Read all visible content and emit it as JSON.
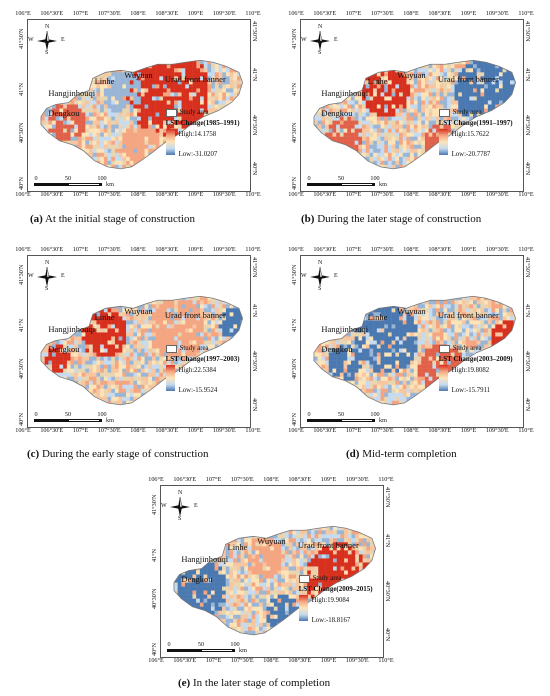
{
  "panels": [
    {
      "id": "a",
      "caption_letter": "(a)",
      "caption_text": " At the initial stage of construction",
      "legend_title": "LST Change(1985–1991)",
      "high": "High:14.1758",
      "low": "Low:-31.0207"
    },
    {
      "id": "b",
      "caption_letter": "(b)",
      "caption_text": " During the later stage of construction",
      "legend_title": "LST Change(1991–1997)",
      "high": "High:15.7622",
      "low": "Low:-20.7787"
    },
    {
      "id": "c",
      "caption_letter": "(c)",
      "caption_text": " During the early stage of construction",
      "legend_title": "LST Change(1997–2003)",
      "high": "High:22.5384",
      "low": "Low:-15.9524"
    },
    {
      "id": "d",
      "caption_letter": "(d)",
      "caption_text": " Mid-term completion",
      "legend_title": "LST Change(2003–2009)",
      "high": "High:19.8082",
      "low": "Low:-15.7911"
    },
    {
      "id": "e",
      "caption_letter": "(e)",
      "caption_text": " In the later stage of completion",
      "legend_title": "LST Change(2009–2015)",
      "high": "High:19.9084",
      "low": "Low:-18.8167"
    }
  ],
  "common": {
    "lon_ticks": [
      "106°E",
      "106°30'E",
      "107°E",
      "107°30'E",
      "108°E",
      "108°30'E",
      "109°E",
      "109°30'E",
      "110°E"
    ],
    "lat_ticks": [
      "41°30'N",
      "41°N",
      "40°30'N",
      "40°N"
    ],
    "study_area": "Study area",
    "places": [
      "Hangjinhouqi",
      "Linhe",
      "Wuyuan",
      "Urad front banner",
      "Dengkou"
    ],
    "scale_labels": [
      "0",
      "50",
      "100"
    ],
    "scale_unit": "km",
    "north": {
      "n": "N",
      "s": "S",
      "w": "W",
      "e": "E"
    },
    "colors": {
      "high": "#d7301f",
      "mid": "#fde4b8",
      "low": "#4a78b0"
    }
  }
}
